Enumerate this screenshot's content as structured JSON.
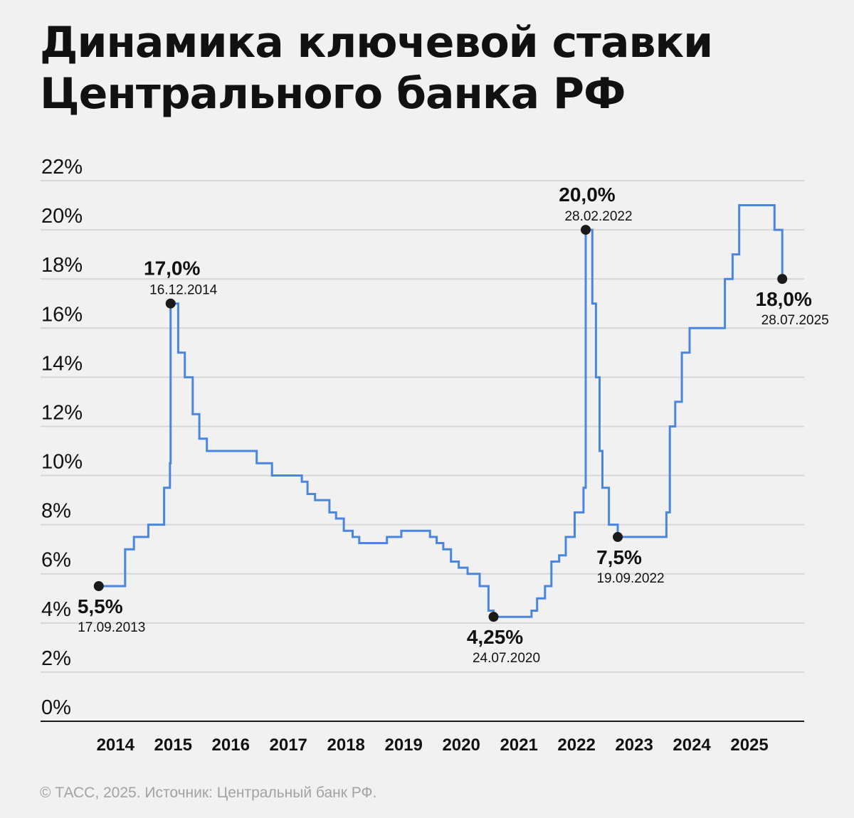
{
  "header": {
    "title_line1": "Динамика ключевой ставки",
    "title_line2": "Центрального банка РФ"
  },
  "footer": {
    "source": "© ТАСС, 2025. Источник: Центральный банк РФ."
  },
  "colors": {
    "line": "#4a86e0",
    "grid": "#d6d6d6",
    "axis": "#1a1a1a",
    "text": "#111111",
    "muted": "#a2a2a2",
    "background": "#f1f1f1"
  },
  "chart_data": {
    "type": "line",
    "title": "Динамика ключевой ставки Центрального банка РФ",
    "xlabel": "",
    "ylabel": "",
    "x_ticks": [
      2014,
      2015,
      2016,
      2017,
      2018,
      2019,
      2020,
      2021,
      2022,
      2023,
      2024,
      2025
    ],
    "y_ticks": [
      0,
      2,
      4,
      6,
      8,
      10,
      12,
      14,
      16,
      18,
      20,
      22
    ],
    "y_tick_labels": [
      "0%",
      "2%",
      "4%",
      "6%",
      "8%",
      "10%",
      "12%",
      "14%",
      "16%",
      "18%",
      "20%",
      "22%"
    ],
    "xlim": [
      2012.7,
      2025.95
    ],
    "ylim": [
      0,
      22
    ],
    "grid": true,
    "series": [
      {
        "step": true,
        "points": [
          [
            "2013-09-17",
            5.5
          ],
          [
            "2014-03-03",
            7.0
          ],
          [
            "2014-04-28",
            7.5
          ],
          [
            "2014-07-28",
            8.0
          ],
          [
            "2014-11-05",
            9.5
          ],
          [
            "2014-12-12",
            10.5
          ],
          [
            "2014-12-16",
            17.0
          ],
          [
            "2015-02-02",
            15.0
          ],
          [
            "2015-03-16",
            14.0
          ],
          [
            "2015-05-05",
            12.5
          ],
          [
            "2015-06-16",
            11.5
          ],
          [
            "2015-08-03",
            11.0
          ],
          [
            "2016-06-14",
            10.5
          ],
          [
            "2016-09-19",
            10.0
          ],
          [
            "2017-03-27",
            9.75
          ],
          [
            "2017-05-02",
            9.25
          ],
          [
            "2017-06-19",
            9.0
          ],
          [
            "2017-09-18",
            8.5
          ],
          [
            "2017-10-30",
            8.25
          ],
          [
            "2017-12-18",
            7.75
          ],
          [
            "2018-02-12",
            7.5
          ],
          [
            "2018-03-26",
            7.25
          ],
          [
            "2018-09-17",
            7.5
          ],
          [
            "2018-12-17",
            7.75
          ],
          [
            "2019-06-17",
            7.5
          ],
          [
            "2019-07-29",
            7.25
          ],
          [
            "2019-09-09",
            7.0
          ],
          [
            "2019-10-28",
            6.5
          ],
          [
            "2019-12-16",
            6.25
          ],
          [
            "2020-02-10",
            6.0
          ],
          [
            "2020-04-27",
            5.5
          ],
          [
            "2020-06-22",
            4.5
          ],
          [
            "2020-07-24",
            4.25
          ],
          [
            "2021-03-22",
            4.5
          ],
          [
            "2021-04-26",
            5.0
          ],
          [
            "2021-06-15",
            5.5
          ],
          [
            "2021-07-26",
            6.5
          ],
          [
            "2021-09-13",
            6.75
          ],
          [
            "2021-10-25",
            7.5
          ],
          [
            "2021-12-20",
            8.5
          ],
          [
            "2022-02-14",
            9.5
          ],
          [
            "2022-02-28",
            20.0
          ],
          [
            "2022-04-11",
            17.0
          ],
          [
            "2022-05-04",
            14.0
          ],
          [
            "2022-05-27",
            11.0
          ],
          [
            "2022-06-14",
            9.5
          ],
          [
            "2022-07-25",
            8.0
          ],
          [
            "2022-09-19",
            7.5
          ],
          [
            "2023-07-24",
            8.5
          ],
          [
            "2023-08-15",
            12.0
          ],
          [
            "2023-09-18",
            13.0
          ],
          [
            "2023-10-30",
            15.0
          ],
          [
            "2023-12-18",
            16.0
          ],
          [
            "2024-07-29",
            18.0
          ],
          [
            "2024-09-16",
            19.0
          ],
          [
            "2024-10-28",
            21.0
          ],
          [
            "2025-06-09",
            20.0
          ],
          [
            "2025-07-28",
            18.0
          ]
        ]
      }
    ],
    "annotations": [
      {
        "date": "2013-09-17",
        "y": 5.5,
        "value": "5,5%",
        "label_date": "17.09.2013",
        "placement": "below"
      },
      {
        "date": "2014-12-16",
        "y": 17.0,
        "value": "17,0%",
        "label_date": "16.12.2014",
        "placement": "above"
      },
      {
        "date": "2020-07-24",
        "y": 4.25,
        "value": "4,25%",
        "label_date": "24.07.2020",
        "placement": "below"
      },
      {
        "date": "2022-02-28",
        "y": 20.0,
        "value": "20,0%",
        "label_date": "28.02.2022",
        "placement": "above"
      },
      {
        "date": "2022-09-19",
        "y": 7.5,
        "value": "7,5%",
        "label_date": "19.09.2022",
        "placement": "below"
      },
      {
        "date": "2025-07-28",
        "y": 18.0,
        "value": "18,0%",
        "label_date": "28.07.2025",
        "placement": "below"
      }
    ]
  }
}
